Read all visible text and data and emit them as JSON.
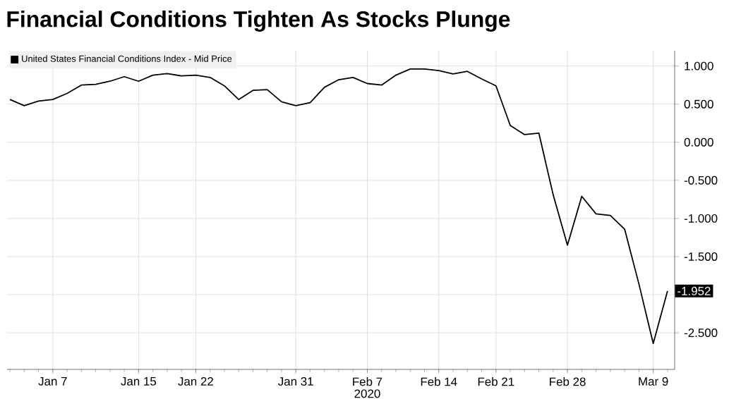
{
  "chart_data": {
    "type": "line",
    "title": "Financial Conditions Tighten As Stocks Plunge",
    "xlabel": "2020",
    "categories": [
      null,
      null,
      null,
      "Jan 7",
      null,
      null,
      null,
      null,
      null,
      "Jan 15",
      null,
      null,
      null,
      "Jan 22",
      null,
      null,
      null,
      null,
      null,
      null,
      "Jan 31",
      null,
      null,
      null,
      null,
      "Feb 7",
      null,
      null,
      null,
      null,
      "Feb 14",
      null,
      null,
      null,
      "Feb 21",
      null,
      null,
      null,
      null,
      "Feb 28",
      null,
      null,
      null,
      null,
      null,
      "Mar 9",
      null
    ],
    "series": [
      {
        "name": "United States Financial Conditions Index - Mid Price",
        "color": "#000000",
        "values": [
          0.56,
          0.48,
          0.54,
          0.56,
          0.64,
          0.75,
          0.76,
          0.8,
          0.86,
          0.8,
          0.88,
          0.9,
          0.87,
          0.88,
          0.85,
          0.74,
          0.56,
          0.68,
          0.69,
          0.53,
          0.48,
          0.52,
          0.72,
          0.82,
          0.85,
          0.77,
          0.75,
          0.88,
          0.96,
          0.96,
          0.94,
          0.895,
          0.93,
          0.83,
          0.74,
          0.22,
          0.1,
          0.12,
          -0.69,
          -1.35,
          -0.71,
          -0.94,
          -0.96,
          -1.14,
          -1.86,
          -2.64,
          -1.952
        ],
        "value_labels": [
          null,
          null,
          null,
          null,
          null,
          null,
          null,
          null,
          null,
          null,
          null,
          null,
          null,
          null,
          null,
          null,
          null,
          null,
          null,
          null,
          null,
          null,
          null,
          null,
          null,
          null,
          null,
          null,
          null,
          null,
          null,
          null,
          null,
          null,
          null,
          null,
          null,
          null,
          null,
          null,
          null,
          null,
          null,
          null,
          null,
          null,
          "-1.952"
        ]
      }
    ],
    "ylim": [
      -2.98,
      1.2
    ],
    "yticks": [
      {
        "value": 1,
        "label": "1.000"
      },
      {
        "value": 0.5,
        "label": "0.500"
      },
      {
        "value": 0,
        "label": "0.000"
      },
      {
        "value": -0.5,
        "label": "-0.500"
      },
      {
        "value": -1,
        "label": "-1.000"
      },
      {
        "value": -1.5,
        "label": "-1.500"
      },
      {
        "value": -2,
        "label": null
      },
      {
        "value": -2.5,
        "label": "-2.500"
      }
    ],
    "grid": true,
    "legend": "top left",
    "line_style": "solid"
  }
}
